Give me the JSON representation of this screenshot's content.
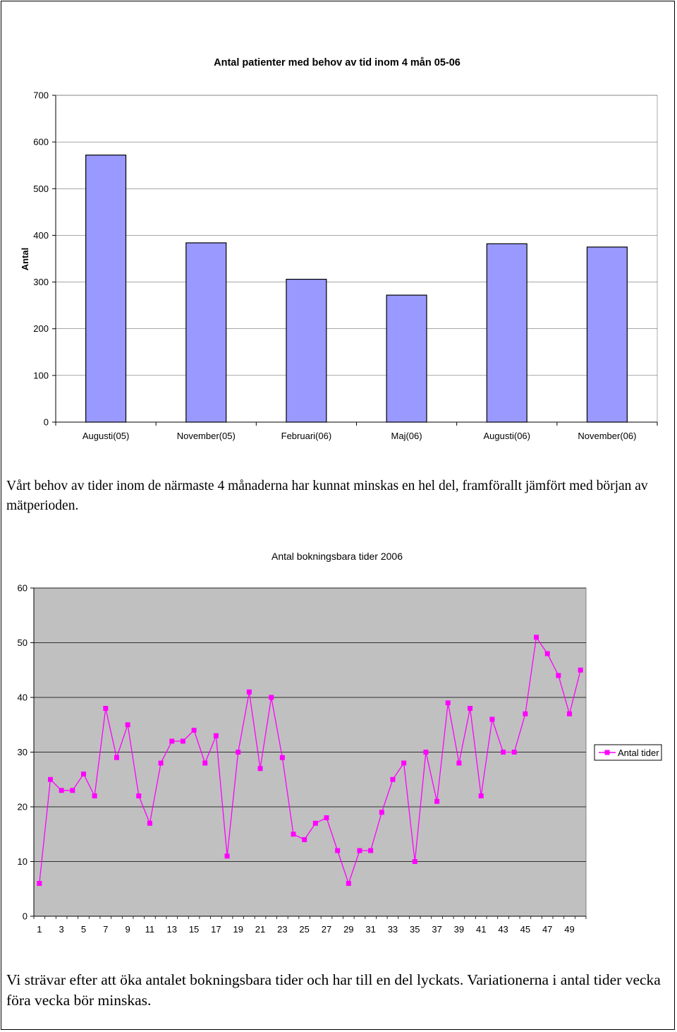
{
  "chart_data": [
    {
      "type": "bar",
      "title": "Antal patienter med behov av tid inom 4 mån 05-06",
      "xlabel": "",
      "ylabel": "Antal",
      "categories": [
        "Augusti(05)",
        "November(05)",
        "Februari(06)",
        "Maj(06)",
        "Augusti(06)",
        "November(06)"
      ],
      "values": [
        572,
        384,
        306,
        272,
        382,
        375
      ],
      "ylim": [
        0,
        700
      ],
      "yticks": [
        0,
        100,
        200,
        300,
        400,
        500,
        600,
        700
      ],
      "grid": true,
      "bar_color": "#9999ff",
      "plot_background": "#ffffff"
    },
    {
      "type": "line",
      "title": "Antal bokningsbara tider 2006",
      "xlabel": "",
      "ylabel": "",
      "x": [
        1,
        2,
        3,
        4,
        5,
        6,
        7,
        8,
        9,
        10,
        11,
        12,
        13,
        14,
        15,
        16,
        17,
        18,
        19,
        20,
        21,
        22,
        23,
        24,
        25,
        26,
        27,
        28,
        29,
        30,
        31,
        32,
        33,
        34,
        35,
        36,
        37,
        38,
        39,
        40,
        41,
        42,
        43,
        44,
        45,
        46,
        47,
        48,
        49,
        50
      ],
      "xticks": [
        1,
        3,
        5,
        7,
        9,
        11,
        13,
        15,
        17,
        19,
        21,
        23,
        25,
        27,
        29,
        31,
        33,
        35,
        37,
        39,
        41,
        43,
        45,
        47,
        49
      ],
      "series": [
        {
          "name": "Antal tider",
          "color": "#ff00ff",
          "marker": "square",
          "values": [
            6,
            25,
            23,
            23,
            26,
            22,
            38,
            29,
            35,
            22,
            17,
            28,
            32,
            32,
            34,
            28,
            33,
            11,
            30,
            41,
            27,
            40,
            29,
            15,
            14,
            17,
            18,
            12,
            6,
            12,
            12,
            19,
            25,
            28,
            10,
            30,
            21,
            39,
            28,
            38,
            22,
            36,
            30,
            30,
            37,
            51,
            48,
            44,
            37,
            45
          ]
        }
      ],
      "ylim": [
        0,
        60
      ],
      "yticks": [
        0,
        10,
        20,
        30,
        40,
        50,
        60
      ],
      "grid": true,
      "legend": "right",
      "plot_background": "#c0c0c0"
    }
  ],
  "text": {
    "paragraph1": "Vårt behov av tider inom de närmaste 4 månaderna har kunnat minskas en hel del, framförallt jämfört med början av mätperioden.",
    "paragraph2": "Vi strävar efter att öka antalet bokningsbara tider och har till en del lyckats. Variationerna i antal tider vecka föra vecka bör minskas."
  }
}
